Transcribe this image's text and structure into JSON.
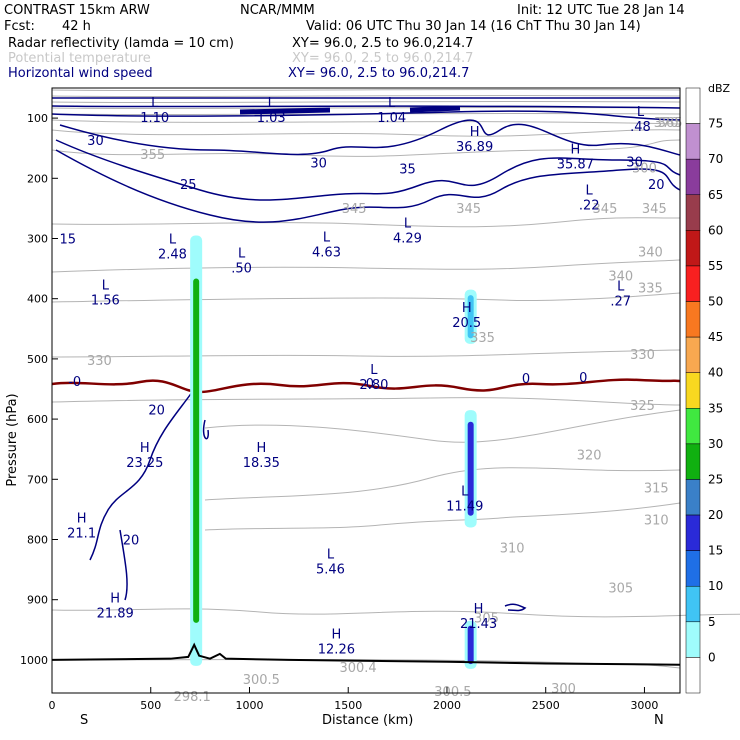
{
  "chart_data": {
    "type": "contour-cross-section",
    "title": "CONTRAST 15km ARW",
    "header": {
      "model": "CONTRAST 15km ARW",
      "center": "NCAR/MMM",
      "init": "Init: 12 UTC Tue 28 Jan 14",
      "fcst_label": "Fcst:",
      "fcst_value": "42 h",
      "valid": "Valid: 06 UTC Thu 30 Jan 14 (16 ChT Thu 30 Jan 14)"
    },
    "fields": [
      {
        "name": "Radar reflectivity (lamda = 10 cm)",
        "xy": "XY=   96.0,   2.5 to   96.0,214.7",
        "color": "#000000"
      },
      {
        "name": "Potential temperature",
        "xy": "XY=   96.0,   2.5 to   96.0,214.7",
        "color": "#c8c8c8"
      },
      {
        "name": "Horizontal wind speed",
        "xy": "XY=   96.0,   2.5 to   96.0,214.7",
        "color": "#000080"
      }
    ],
    "xlabel": "Distance (km)",
    "ylabel": "Pressure (hPa)",
    "xlim": [
      0,
      3180
    ],
    "ylim": [
      1055,
      50
    ],
    "x_ticks": [
      0,
      500,
      1000,
      1500,
      2000,
      2500,
      3000
    ],
    "y_ticks": [
      100,
      200,
      300,
      400,
      500,
      600,
      700,
      800,
      900,
      1000
    ],
    "x_end_labels": [
      "S",
      "N"
    ],
    "colorbar": {
      "unit": "dBZ",
      "levels": [
        0,
        5,
        10,
        15,
        20,
        25,
        30,
        35,
        40,
        45,
        50,
        55,
        60,
        65,
        70,
        75
      ],
      "colors": [
        "#ffffff",
        "#9ffcfc",
        "#40c4f4",
        "#1f6fe6",
        "#2a2ad8",
        "#3a80c8",
        "#10b010",
        "#40e840",
        "#f8d820",
        "#f8a850",
        "#f87820",
        "#f82020",
        "#c01818",
        "#983c4c",
        "#8a3c9c",
        "#c090d0",
        "#ffffff"
      ]
    },
    "theta_labels": [
      {
        "text": "370",
        "x": 3110,
        "p": 115
      },
      {
        "text": "365",
        "x": 3130,
        "p": 115
      },
      {
        "text": "355",
        "x": 510,
        "p": 168
      },
      {
        "text": "300",
        "x": 3000,
        "p": 190
      },
      {
        "text": "345",
        "x": 1530,
        "p": 258
      },
      {
        "text": "345",
        "x": 2110,
        "p": 258
      },
      {
        "text": "345",
        "x": 2800,
        "p": 258
      },
      {
        "text": "345",
        "x": 3050,
        "p": 258
      },
      {
        "text": "340",
        "x": 2880,
        "p": 370
      },
      {
        "text": "340",
        "x": 3030,
        "p": 330
      },
      {
        "text": "335",
        "x": 2180,
        "p": 472
      },
      {
        "text": "335",
        "x": 3030,
        "p": 390
      },
      {
        "text": "330",
        "x": 240,
        "p": 510
      },
      {
        "text": "330",
        "x": 2990,
        "p": 500
      },
      {
        "text": "325",
        "x": 2990,
        "p": 585
      },
      {
        "text": "320",
        "x": 2720,
        "p": 667
      },
      {
        "text": "315",
        "x": 3060,
        "p": 722
      },
      {
        "text": "310",
        "x": 2330,
        "p": 822
      },
      {
        "text": "310",
        "x": 3060,
        "p": 775
      },
      {
        "text": "305",
        "x": 2880,
        "p": 888
      },
      {
        "text": "305",
        "x": 2200,
        "p": 938
      },
      {
        "text": "300.5",
        "x": 1060,
        "p": 1040
      },
      {
        "text": "300.4",
        "x": 1550,
        "p": 1020
      },
      {
        "text": "300.5",
        "x": 2030,
        "p": 1060
      },
      {
        "text": "300",
        "x": 2590,
        "p": 1055
      },
      {
        "text": "298.1",
        "x": 710,
        "p": 1068
      }
    ],
    "wind_labels": [
      {
        "text": "30",
        "x": 220,
        "p": 145
      },
      {
        "text": "25",
        "x": 690,
        "p": 218
      },
      {
        "text": "30",
        "x": 1350,
        "p": 182
      },
      {
        "text": "35",
        "x": 1800,
        "p": 192
      },
      {
        "text": "30",
        "x": 2950,
        "p": 180
      },
      {
        "text": "20",
        "x": 3060,
        "p": 218
      },
      {
        "text": "15",
        "x": 80,
        "p": 308
      },
      {
        "text": "20",
        "x": 530,
        "p": 592
      },
      {
        "text": "20",
        "x": 400,
        "p": 808
      },
      {
        "text": "-0",
        "x": 115,
        "p": 545
      },
      {
        "text": "0",
        "x": 1610,
        "p": 548
      },
      {
        "text": "0",
        "x": 2400,
        "p": 540
      },
      {
        "text": "0",
        "x": 2690,
        "p": 538
      }
    ],
    "extrema": [
      {
        "type": "L",
        "value": "1.10",
        "x": 520,
        "p": 95
      },
      {
        "type": "L",
        "value": "1.03",
        "x": 1110,
        "p": 95
      },
      {
        "type": "L",
        "value": "1.04",
        "x": 1720,
        "p": 95
      },
      {
        "type": "L",
        "value": ".48",
        "x": 2980,
        "p": 110
      },
      {
        "type": "H",
        "value": "36.89",
        "x": 2140,
        "p": 143
      },
      {
        "type": "H",
        "value": "35.87",
        "x": 2650,
        "p": 172
      },
      {
        "type": "L",
        "value": ".22",
        "x": 2720,
        "p": 240
      },
      {
        "type": "L",
        "value": "2.48",
        "x": 610,
        "p": 322
      },
      {
        "type": "L",
        "value": ".50",
        "x": 960,
        "p": 345
      },
      {
        "type": "L",
        "value": "4.63",
        "x": 1390,
        "p": 318
      },
      {
        "type": "L",
        "value": "4.29",
        "x": 1800,
        "p": 295
      },
      {
        "type": "L",
        "value": "1.56",
        "x": 270,
        "p": 398
      },
      {
        "type": "L",
        "value": ".27",
        "x": 2880,
        "p": 400
      },
      {
        "type": "H",
        "value": "20.5",
        "x": 2100,
        "p": 435
      },
      {
        "type": "L",
        "value": "2.80",
        "x": 1630,
        "p": 538
      },
      {
        "type": "H",
        "value": "23.25",
        "x": 470,
        "p": 668
      },
      {
        "type": "H",
        "value": "18.35",
        "x": 1060,
        "p": 668
      },
      {
        "type": "L",
        "value": "11.49",
        "x": 2090,
        "p": 740
      },
      {
        "type": "H",
        "value": "21.1",
        "x": 150,
        "p": 785
      },
      {
        "type": "L",
        "value": "5.46",
        "x": 1410,
        "p": 845
      },
      {
        "type": "H",
        "value": "21.89",
        "x": 320,
        "p": 918
      },
      {
        "type": "H",
        "value": "21.43",
        "x": 2160,
        "p": 935
      },
      {
        "type": "H",
        "value": "12.26",
        "x": 1440,
        "p": 978
      }
    ],
    "reflectivity_cells": [
      {
        "x": 730,
        "p_top": 295,
        "p_bottom": 1010,
        "max_dbz": 30
      },
      {
        "x": 2120,
        "p_top": 385,
        "p_bottom": 475,
        "max_dbz": 10
      },
      {
        "x": 2120,
        "p_top": 585,
        "p_bottom": 780,
        "max_dbz": 20
      },
      {
        "x": 2120,
        "p_top": 935,
        "p_bottom": 1015,
        "max_dbz": 20
      }
    ]
  }
}
